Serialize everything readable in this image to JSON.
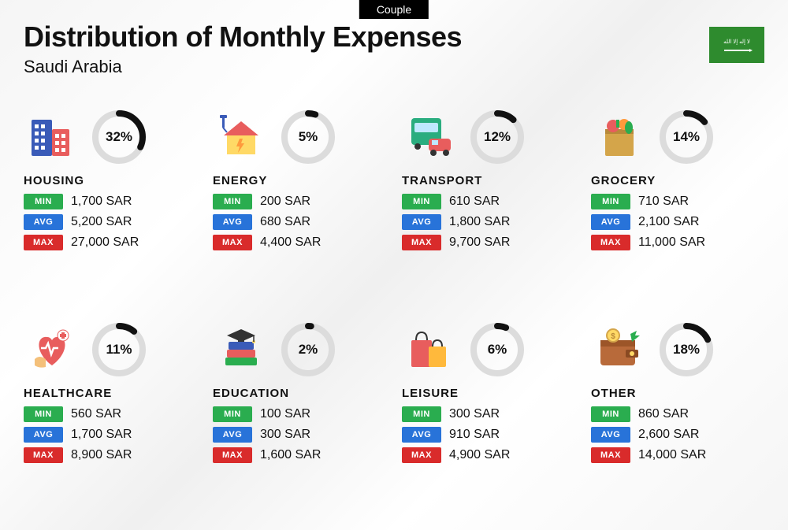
{
  "badge_label": "Couple",
  "title": "Distribution of Monthly Expenses",
  "subtitle": "Saudi Arabia",
  "flag": {
    "bg": "#2e8b2e",
    "label": "السعودية"
  },
  "labels": {
    "min": "MIN",
    "avg": "AVG",
    "max": "MAX"
  },
  "colors": {
    "min_bg": "#2aad4f",
    "avg_bg": "#2873d9",
    "max_bg": "#d92b2b",
    "donut_track": "#dcdcdc",
    "donut_fill": "#111111",
    "text": "#111111"
  },
  "donut": {
    "radius": 30,
    "stroke_width": 8,
    "size": 74
  },
  "currency": "SAR",
  "categories": [
    {
      "key": "housing",
      "label": "HOUSING",
      "percent": 32,
      "min": "1,700 SAR",
      "avg": "5,200 SAR",
      "max": "27,000 SAR",
      "icon": "buildings-icon"
    },
    {
      "key": "energy",
      "label": "ENERGY",
      "percent": 5,
      "min": "200 SAR",
      "avg": "680 SAR",
      "max": "4,400 SAR",
      "icon": "energy-house-icon"
    },
    {
      "key": "transport",
      "label": "TRANSPORT",
      "percent": 12,
      "min": "610 SAR",
      "avg": "1,800 SAR",
      "max": "9,700 SAR",
      "icon": "bus-car-icon"
    },
    {
      "key": "grocery",
      "label": "GROCERY",
      "percent": 14,
      "min": "710 SAR",
      "avg": "2,100 SAR",
      "max": "11,000 SAR",
      "icon": "grocery-bag-icon"
    },
    {
      "key": "healthcare",
      "label": "HEALTHCARE",
      "percent": 11,
      "min": "560 SAR",
      "avg": "1,700 SAR",
      "max": "8,900 SAR",
      "icon": "heart-care-icon"
    },
    {
      "key": "education",
      "label": "EDUCATION",
      "percent": 2,
      "min": "100 SAR",
      "avg": "300 SAR",
      "max": "1,600 SAR",
      "icon": "graduation-books-icon"
    },
    {
      "key": "leisure",
      "label": "LEISURE",
      "percent": 6,
      "min": "300 SAR",
      "avg": "910 SAR",
      "max": "4,900 SAR",
      "icon": "shopping-bags-icon"
    },
    {
      "key": "other",
      "label": "OTHER",
      "percent": 18,
      "min": "860 SAR",
      "avg": "2,600 SAR",
      "max": "14,000 SAR",
      "icon": "wallet-icon"
    }
  ]
}
